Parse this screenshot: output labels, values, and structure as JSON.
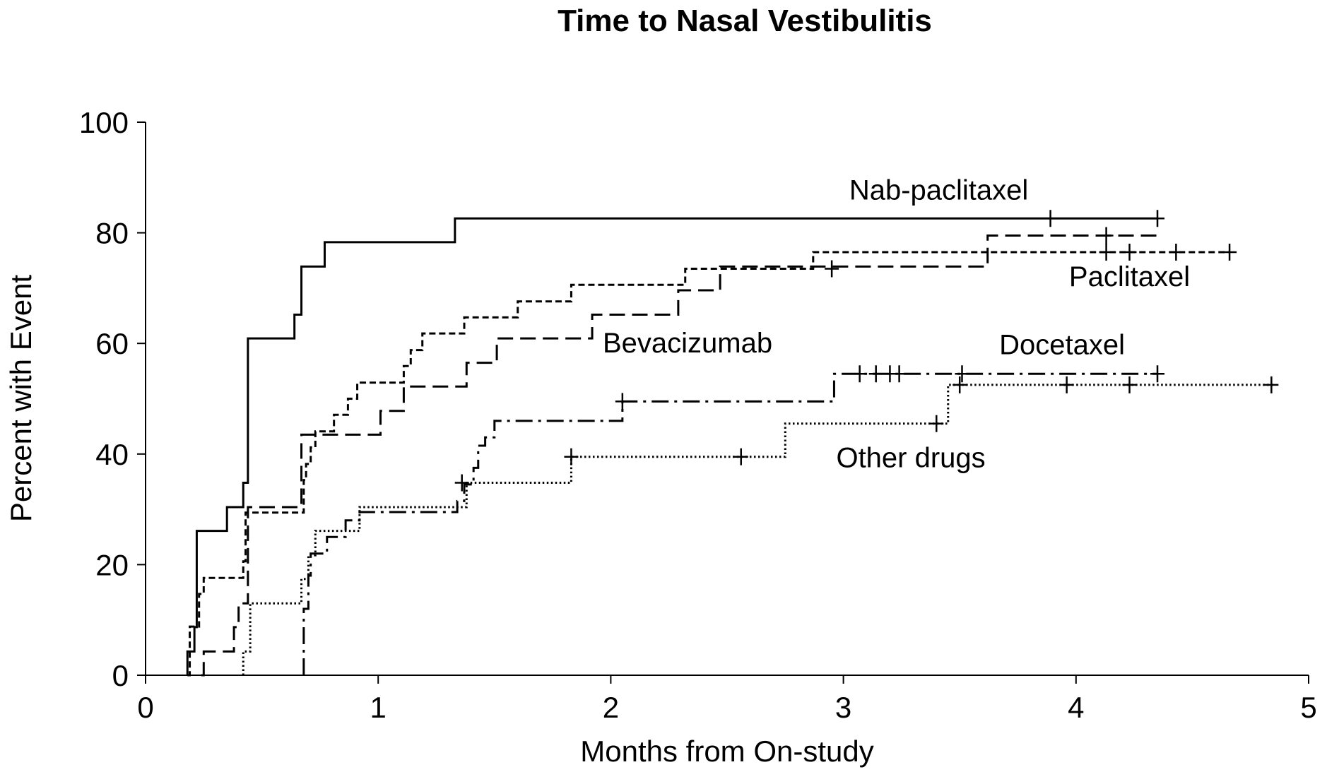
{
  "chart_data": {
    "type": "line",
    "title": "Time to Nasal Vestibulitis",
    "xlabel": "Months from On-study",
    "ylabel": "Percent with Event",
    "xlim": [
      0,
      5
    ],
    "ylim": [
      0,
      100
    ],
    "xticks": [
      0,
      1,
      2,
      3,
      4,
      5
    ],
    "yticks": [
      0,
      20,
      40,
      60,
      80,
      100
    ],
    "grid": false,
    "step": true,
    "series": [
      {
        "name": "Nab-paclitaxel",
        "dash": "solid",
        "x": [
          0.18,
          0.18,
          0.21,
          0.22,
          0.35,
          0.42,
          0.44,
          0.64,
          0.67,
          0.77,
          1.33,
          4.35
        ],
        "y": [
          0,
          4.3,
          8.7,
          26.1,
          30.4,
          34.8,
          60.9,
          65.2,
          73.9,
          78.3,
          82.6,
          82.6
        ],
        "censored": [
          {
            "x": 3.89,
            "y": 82.6
          },
          {
            "x": 4.35,
            "y": 82.6
          }
        ]
      },
      {
        "name": "Paclitaxel",
        "dash": "short-dash",
        "x": [
          0.18,
          0.19,
          0.23,
          0.25,
          0.42,
          0.43,
          0.68,
          0.69,
          0.71,
          0.73,
          0.81,
          0.87,
          0.91,
          1.11,
          1.14,
          1.19,
          1.37,
          1.6,
          1.83,
          2.32,
          2.87,
          3.63,
          4.66
        ],
        "y": [
          0,
          8.8,
          14.7,
          17.6,
          20.6,
          29.4,
          35.3,
          38.2,
          41.2,
          44.1,
          47.1,
          50.0,
          52.9,
          55.9,
          58.8,
          61.8,
          64.7,
          67.6,
          70.6,
          73.5,
          76.5,
          76.5,
          76.5
        ],
        "censored": [
          {
            "x": 2.95,
            "y": 73.5
          },
          {
            "x": 4.13,
            "y": 76.5
          },
          {
            "x": 4.23,
            "y": 76.5
          },
          {
            "x": 4.43,
            "y": 76.5
          },
          {
            "x": 4.66,
            "y": 76.5
          }
        ]
      },
      {
        "name": "Bevacizumab",
        "dash": "long-dash",
        "x": [
          0.24,
          0.25,
          0.38,
          0.4,
          0.44,
          0.67,
          0.69,
          0.75,
          1.01,
          1.11,
          1.38,
          1.51,
          1.92,
          2.29,
          2.47,
          3.62,
          4.35
        ],
        "y": [
          0,
          4.3,
          8.7,
          13.0,
          30.4,
          43.5,
          43.5,
          43.5,
          47.8,
          52.2,
          56.5,
          60.9,
          65.2,
          69.6,
          73.9,
          79.5,
          79.5
        ],
        "censored": [
          {
            "x": 4.13,
            "y": 79.5
          }
        ]
      },
      {
        "name": "Docetaxel",
        "dash": "dash-dot",
        "x": [
          0.68,
          0.68,
          0.7,
          0.71,
          0.78,
          0.86,
          0.92,
          1.32,
          1.34,
          1.37,
          1.41,
          1.43,
          1.46,
          1.5,
          1.89,
          2.05,
          2.93,
          2.96,
          4.35
        ],
        "y": [
          0,
          12.0,
          18.0,
          22.0,
          25.0,
          28.0,
          29.5,
          29.5,
          31.5,
          34.5,
          37.5,
          41.5,
          43.0,
          46.0,
          46.0,
          49.5,
          49.5,
          54.5,
          54.5
        ],
        "censored": [
          {
            "x": 2.05,
            "y": 49.5
          },
          {
            "x": 3.07,
            "y": 54.5
          },
          {
            "x": 3.14,
            "y": 54.5
          },
          {
            "x": 3.2,
            "y": 54.5
          },
          {
            "x": 3.24,
            "y": 54.5
          },
          {
            "x": 3.51,
            "y": 54.5
          },
          {
            "x": 4.35,
            "y": 54.5
          }
        ]
      },
      {
        "name": "Other drugs",
        "dash": "dotted",
        "x": [
          0.42,
          0.42,
          0.45,
          0.67,
          0.7,
          0.73,
          0.92,
          1.34,
          1.38,
          1.41,
          1.79,
          1.83,
          2.75,
          3.42,
          3.45,
          4.85
        ],
        "y": [
          0,
          4.3,
          13.0,
          17.4,
          21.7,
          26.1,
          30.4,
          30.4,
          34.8,
          34.8,
          34.8,
          39.5,
          45.5,
          45.5,
          52.5,
          52.5
        ],
        "censored": [
          {
            "x": 1.36,
            "y": 34.8
          },
          {
            "x": 1.83,
            "y": 39.5
          },
          {
            "x": 2.56,
            "y": 39.5
          },
          {
            "x": 3.4,
            "y": 45.5
          },
          {
            "x": 3.5,
            "y": 52.5
          },
          {
            "x": 3.96,
            "y": 52.5
          },
          {
            "x": 4.23,
            "y": 52.5
          },
          {
            "x": 4.84,
            "y": 52.5
          }
        ]
      }
    ],
    "annotations": [
      {
        "text": "Nab-paclitaxel",
        "x": 3.41,
        "y": 87.7
      },
      {
        "text": "Paclitaxel",
        "x": 4.23,
        "y": 72.0
      },
      {
        "text": "Bevacizumab",
        "x": 2.33,
        "y": 60.0
      },
      {
        "text": "Docetaxel",
        "x": 3.94,
        "y": 59.7
      },
      {
        "text": "Other drugs",
        "x": 3.29,
        "y": 39.3
      }
    ]
  }
}
